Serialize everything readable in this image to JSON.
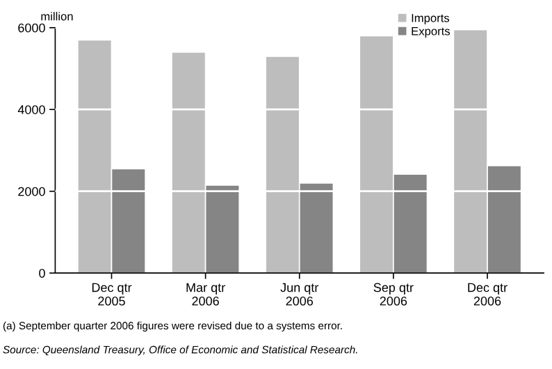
{
  "chart_data": {
    "type": "bar",
    "ylabel": "million",
    "categories": [
      "Dec qtr\n2005",
      "Mar qtr\n2006",
      "Jun qtr\n2006",
      "Sep qtr\n2006",
      "Dec qtr\n2006"
    ],
    "series": [
      {
        "name": "Imports",
        "color": "#bdbdbd",
        "values": [
          5700,
          5400,
          5300,
          5800,
          5950
        ]
      },
      {
        "name": "Exports",
        "color": "#858585",
        "values": [
          2550,
          2150,
          2200,
          2420,
          2625
        ]
      }
    ],
    "ylim": [
      0,
      6000
    ],
    "yticks": [
      0,
      2000,
      4000,
      6000
    ],
    "grid": "y",
    "legend": "top right",
    "annotations": [
      "(a) September quarter 2006 figures were revised due to a systems error.",
      "Source: Queensland Treasury, Office of Economic and Statistical Research."
    ]
  }
}
